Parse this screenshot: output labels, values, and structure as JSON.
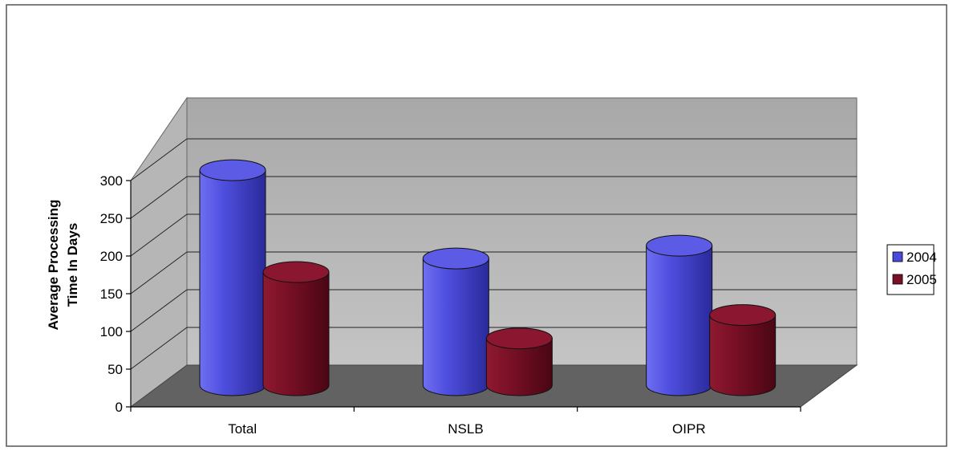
{
  "chart_data": {
    "type": "bar",
    "title": "",
    "xlabel": "",
    "ylabel": [
      "Average Processing",
      "Time In Days"
    ],
    "categories": [
      "Total",
      "NSLB",
      "OIPR"
    ],
    "series": [
      {
        "name": "2004",
        "values": [
          285,
          168,
          185
        ],
        "color": "#4a4ad6"
      },
      {
        "name": "2005",
        "values": [
          150,
          62,
          93
        ],
        "color": "#7a1026"
      }
    ],
    "ylim": [
      0,
      300
    ],
    "yticks": [
      0,
      50,
      100,
      150,
      200,
      250,
      300
    ],
    "grid": true,
    "legend": "right",
    "style": "3d-cylinder"
  }
}
